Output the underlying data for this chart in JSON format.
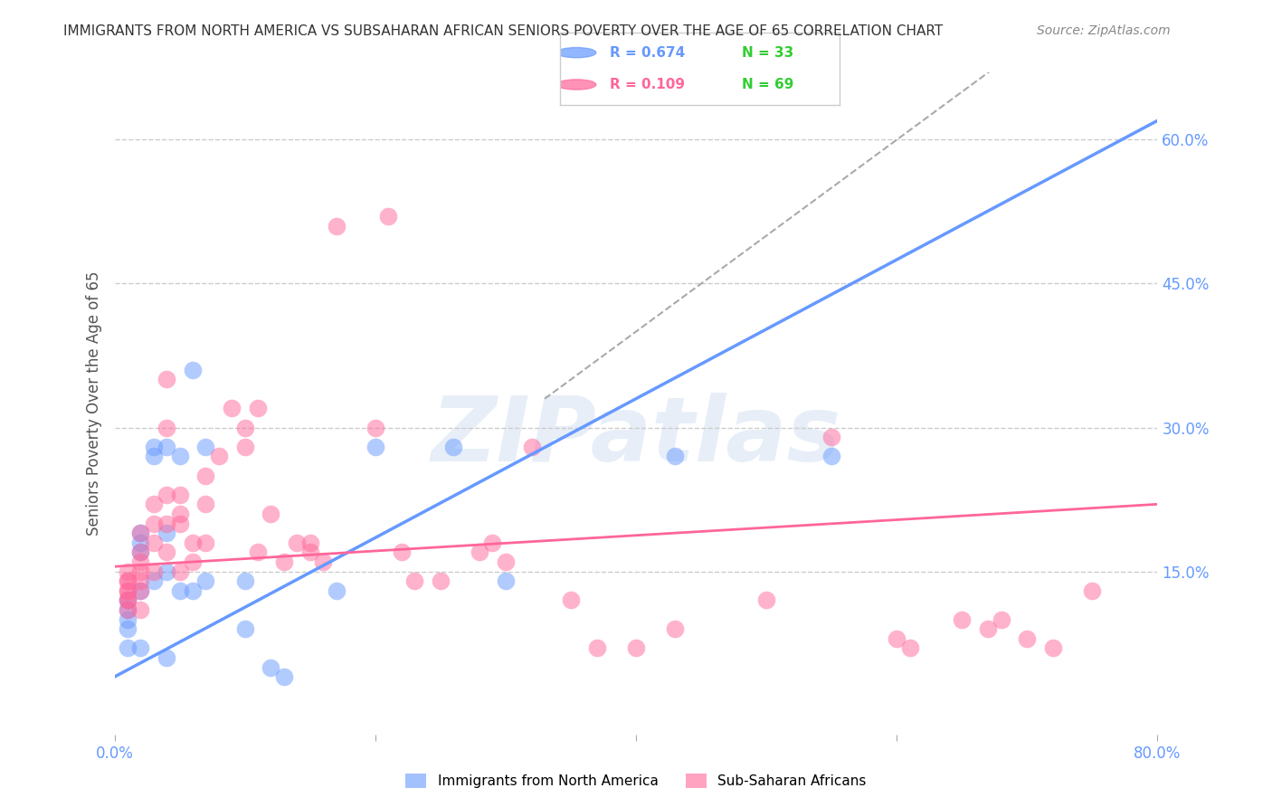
{
  "title": "IMMIGRANTS FROM NORTH AMERICA VS SUBSAHARAN AFRICAN SENIORS POVERTY OVER THE AGE OF 65 CORRELATION CHART",
  "source": "Source: ZipAtlas.com",
  "xlabel": "",
  "ylabel": "Seniors Poverty Over the Age of 65",
  "xlim": [
    0.0,
    0.8
  ],
  "ylim": [
    -0.02,
    0.67
  ],
  "right_yticks": [
    0.15,
    0.3,
    0.45,
    0.6
  ],
  "right_yticklabels": [
    "15.0%",
    "30.0%",
    "45.0%",
    "60.0%"
  ],
  "xticks": [
    0.0,
    0.2,
    0.4,
    0.6,
    0.8
  ],
  "xticklabels": [
    "0.0%",
    "",
    "",
    "",
    "80.0%"
  ],
  "legend_entries": [
    {
      "label": "R = 0.674   N = 33",
      "color": "#6699ff"
    },
    {
      "label": "R = 0.109   N = 69",
      "color": "#ff6699"
    }
  ],
  "legend_labels_bottom": [
    "Immigrants from North America",
    "Sub-Saharan Africans"
  ],
  "watermark": "ZIPatlas",
  "blue_color": "#6699ff",
  "pink_color": "#ff6699",
  "gray_line_color": "#aaaaaa",
  "background_color": "#ffffff",
  "grid_color": "#cccccc",
  "blue_x": [
    0.01,
    0.01,
    0.01,
    0.01,
    0.01,
    0.02,
    0.02,
    0.02,
    0.02,
    0.02,
    0.03,
    0.03,
    0.03,
    0.04,
    0.04,
    0.04,
    0.04,
    0.05,
    0.05,
    0.06,
    0.06,
    0.07,
    0.07,
    0.1,
    0.1,
    0.12,
    0.13,
    0.17,
    0.2,
    0.26,
    0.3,
    0.43,
    0.55
  ],
  "blue_y": [
    0.12,
    0.11,
    0.1,
    0.09,
    0.07,
    0.19,
    0.18,
    0.17,
    0.13,
    0.07,
    0.28,
    0.27,
    0.14,
    0.28,
    0.19,
    0.15,
    0.06,
    0.27,
    0.13,
    0.36,
    0.13,
    0.28,
    0.14,
    0.14,
    0.09,
    0.05,
    0.04,
    0.13,
    0.28,
    0.28,
    0.14,
    0.27,
    0.27
  ],
  "pink_x": [
    0.01,
    0.01,
    0.01,
    0.01,
    0.01,
    0.01,
    0.01,
    0.01,
    0.02,
    0.02,
    0.02,
    0.02,
    0.02,
    0.02,
    0.02,
    0.03,
    0.03,
    0.03,
    0.03,
    0.04,
    0.04,
    0.04,
    0.04,
    0.04,
    0.05,
    0.05,
    0.05,
    0.05,
    0.06,
    0.06,
    0.07,
    0.07,
    0.07,
    0.08,
    0.09,
    0.1,
    0.1,
    0.11,
    0.11,
    0.12,
    0.13,
    0.14,
    0.15,
    0.15,
    0.16,
    0.17,
    0.2,
    0.21,
    0.22,
    0.23,
    0.25,
    0.28,
    0.29,
    0.3,
    0.32,
    0.35,
    0.37,
    0.4,
    0.43,
    0.5,
    0.55,
    0.6,
    0.61,
    0.65,
    0.67,
    0.68,
    0.7,
    0.72,
    0.75
  ],
  "pink_y": [
    0.15,
    0.14,
    0.14,
    0.13,
    0.13,
    0.12,
    0.12,
    0.11,
    0.19,
    0.17,
    0.16,
    0.15,
    0.14,
    0.13,
    0.11,
    0.22,
    0.2,
    0.18,
    0.15,
    0.35,
    0.3,
    0.23,
    0.2,
    0.17,
    0.23,
    0.21,
    0.2,
    0.15,
    0.18,
    0.16,
    0.25,
    0.22,
    0.18,
    0.27,
    0.32,
    0.3,
    0.28,
    0.32,
    0.17,
    0.21,
    0.16,
    0.18,
    0.18,
    0.17,
    0.16,
    0.51,
    0.3,
    0.52,
    0.17,
    0.14,
    0.14,
    0.17,
    0.18,
    0.16,
    0.28,
    0.12,
    0.07,
    0.07,
    0.09,
    0.12,
    0.29,
    0.08,
    0.07,
    0.1,
    0.09,
    0.1,
    0.08,
    0.07,
    0.13
  ],
  "blue_R": 0.674,
  "blue_N": 33,
  "pink_R": 0.109,
  "pink_N": 69,
  "blue_line_x": [
    0.0,
    0.8
  ],
  "blue_line_y": [
    0.04,
    0.62
  ],
  "pink_line_x": [
    0.0,
    0.8
  ],
  "pink_line_y": [
    0.155,
    0.22
  ],
  "gray_line_x": [
    0.33,
    0.8
  ],
  "gray_line_y": [
    0.33,
    0.8
  ]
}
